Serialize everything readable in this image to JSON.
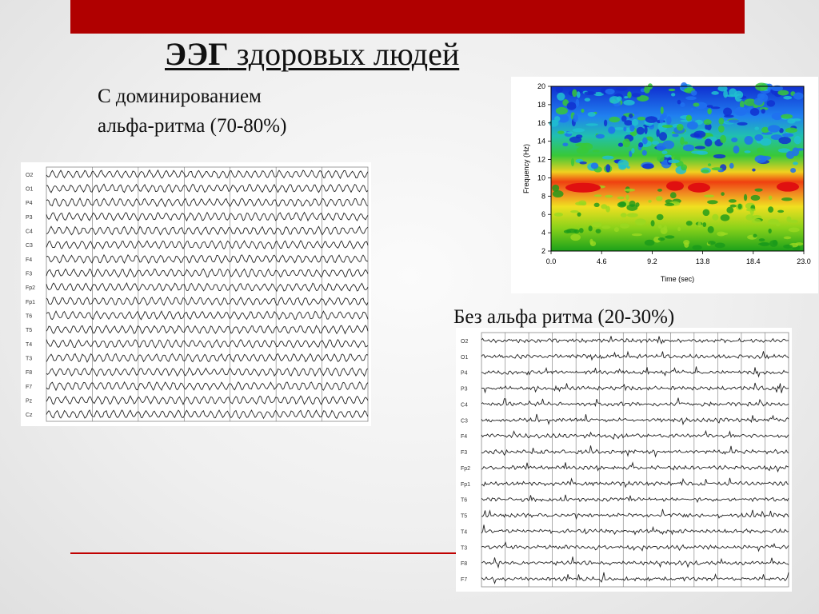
{
  "slide": {
    "title_bold": "ЭЭГ",
    "title_rest": " здоровых людей",
    "alpha_caption_line1": "С доминированием",
    "alpha_caption_line2": "альфа-ритма (70-80%)",
    "no_alpha_caption": "Без альфа ритма (20-30%)"
  },
  "colors": {
    "top_bar": "#b00000",
    "bottom_line": "#c00000",
    "text": "#111111"
  },
  "eeg_alpha": {
    "channels": [
      "O2",
      "O1",
      "P4",
      "P3",
      "C4",
      "C3",
      "F4",
      "F3",
      "Fp2",
      "Fp1",
      "T6",
      "T5",
      "T4",
      "T3",
      "F8",
      "F7",
      "Pz",
      "Cz"
    ]
  },
  "eeg_no_alpha": {
    "channels": [
      "O2",
      "O1",
      "P4",
      "P3",
      "C4",
      "C3",
      "F4",
      "F3",
      "Fp2",
      "Fp1",
      "T6",
      "T5",
      "T4",
      "T3",
      "F8",
      "F7"
    ]
  },
  "spectrogram": {
    "ylabel": "Frequency (Hz)",
    "xlabel": "Time (sec)",
    "yticks": [
      "2",
      "4",
      "6",
      "8",
      "10",
      "12",
      "14",
      "16",
      "18",
      "20"
    ],
    "xticks": [
      "0.0",
      "4.6",
      "9.2",
      "13.8",
      "18.4",
      "23.0"
    ]
  }
}
